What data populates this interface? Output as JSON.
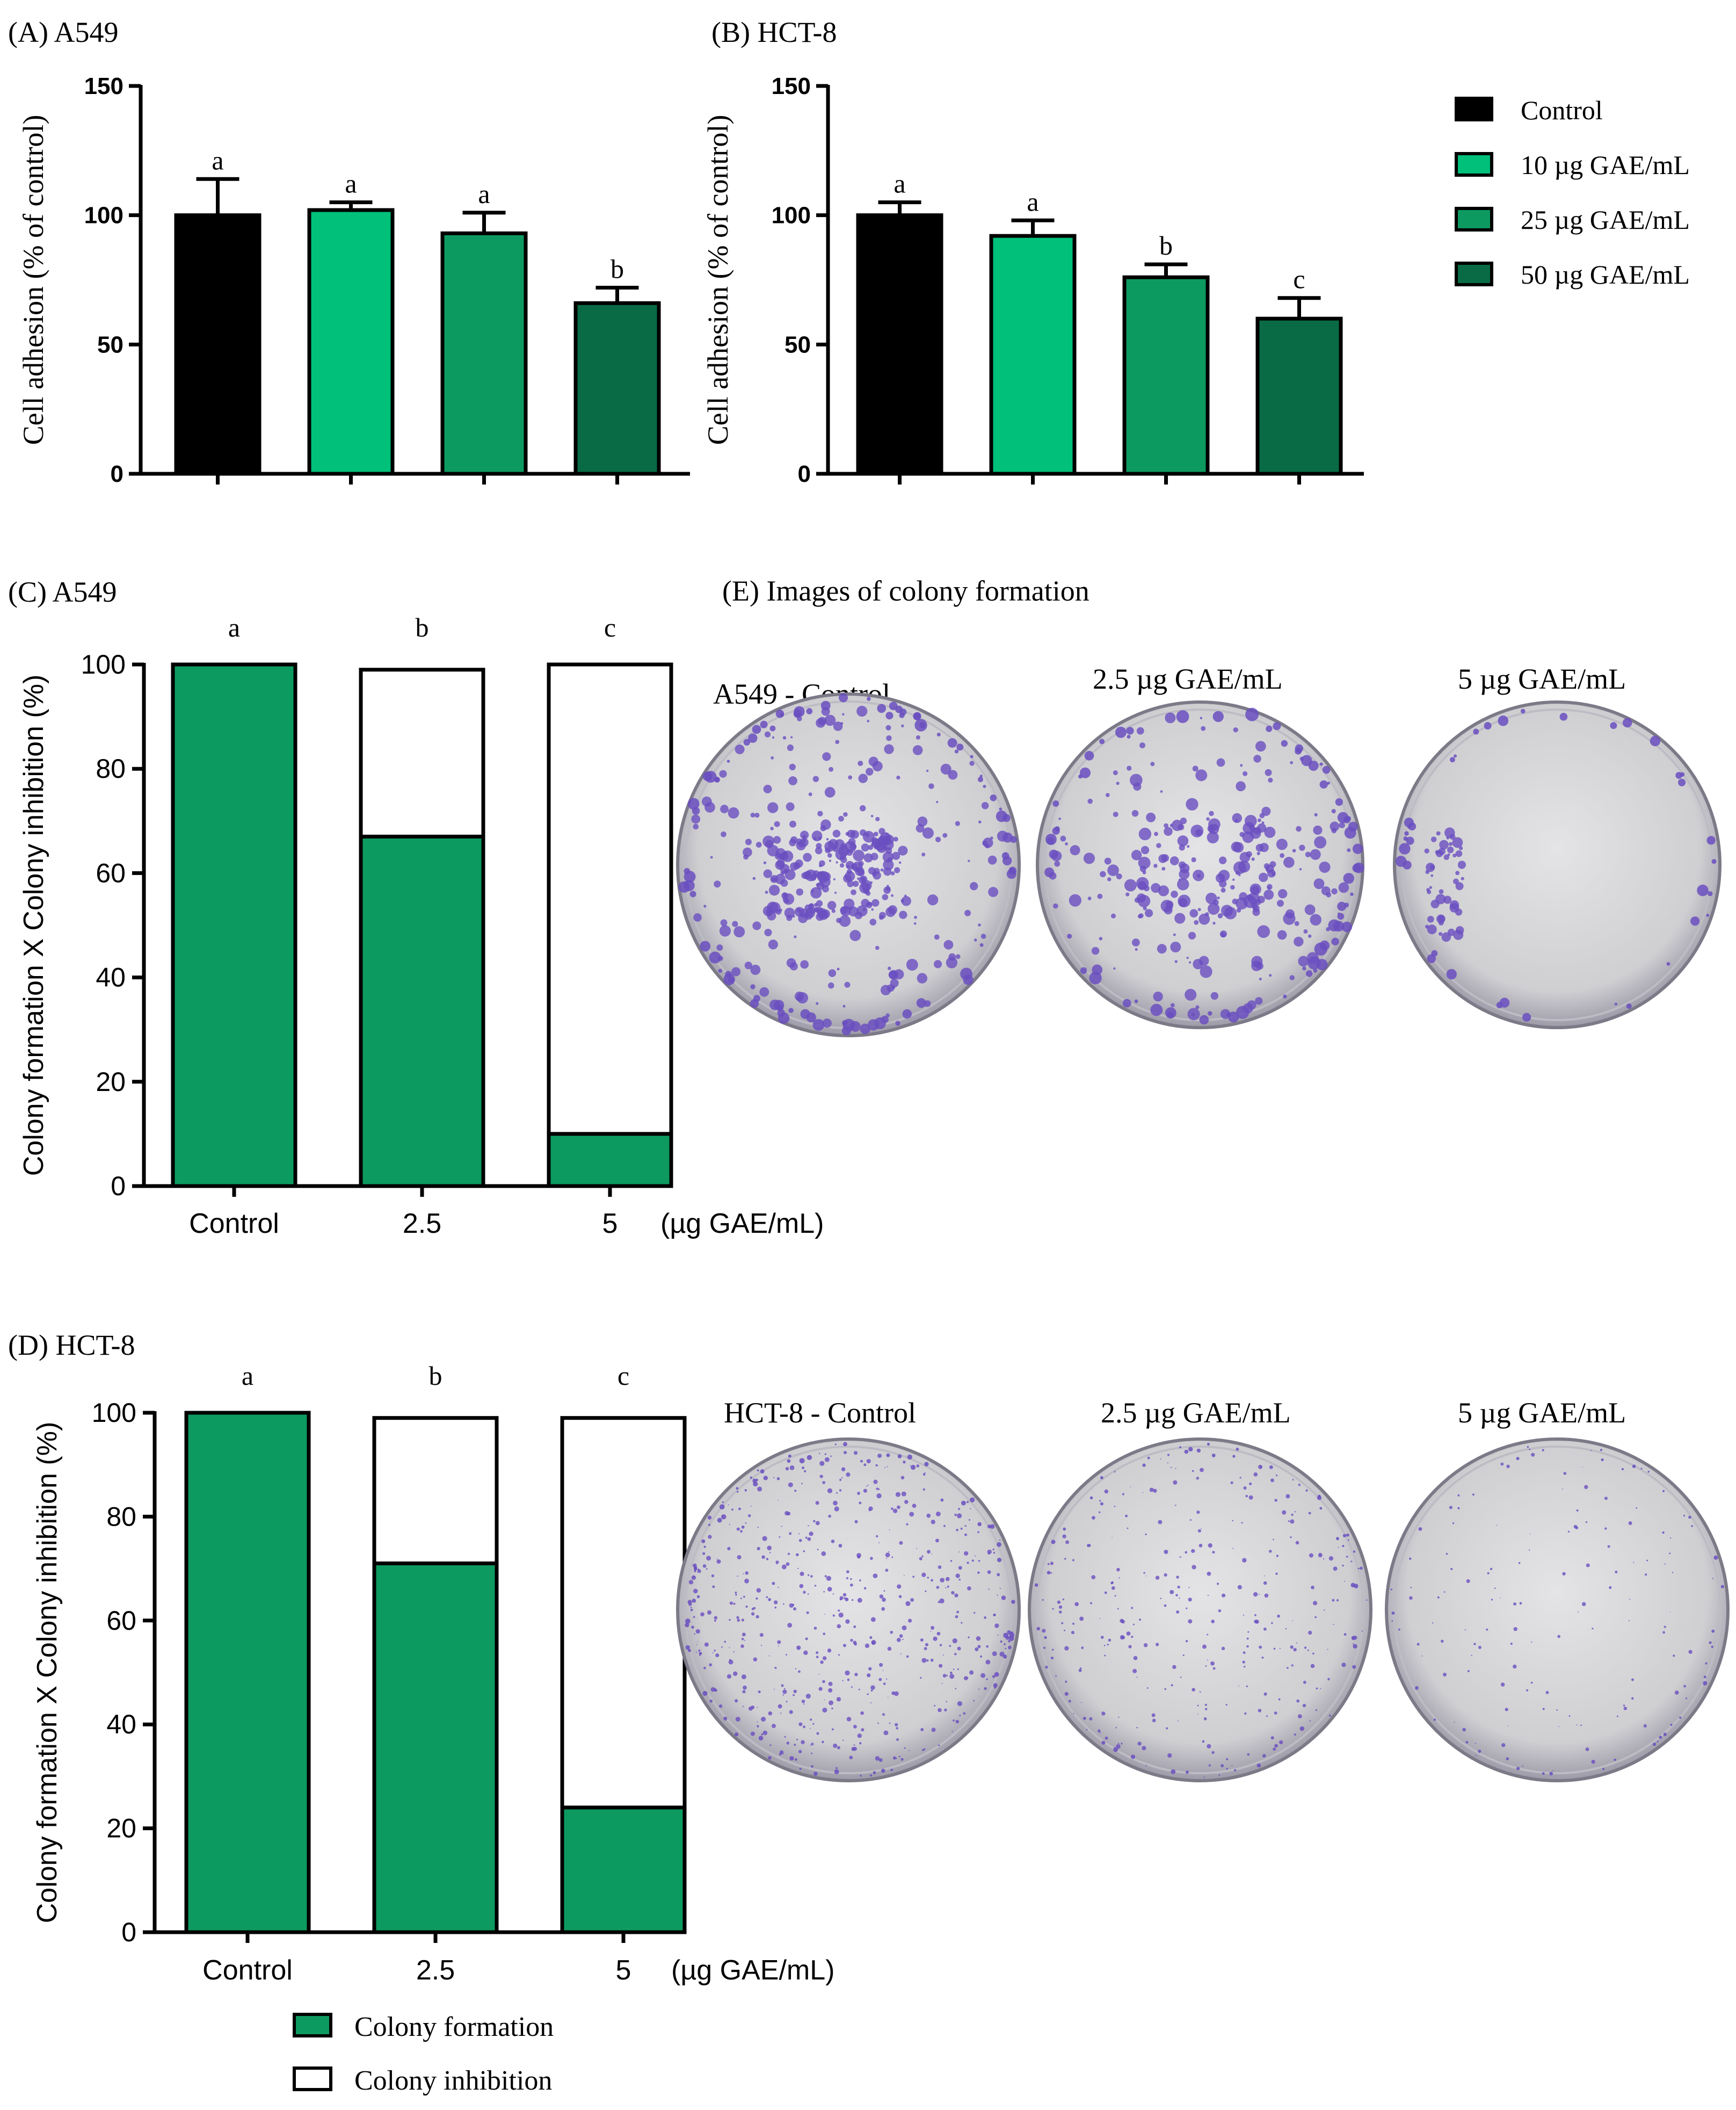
{
  "panels": {
    "A": {
      "title": "(A) A549"
    },
    "B": {
      "title": "(B) HCT-8"
    },
    "C": {
      "title": "(C) A549"
    },
    "D": {
      "title": "(D) HCT-8"
    },
    "E": {
      "title": "(E) Images of colony formation",
      "a549_captions": [
        "A549 - Control",
        "2.5 µg GAE/mL",
        "5 µg GAE/mL"
      ],
      "hct8_captions": [
        "HCT-8 - Control",
        "2.5 µg GAE/mL",
        "5 µg GAE/mL"
      ]
    }
  },
  "colors": {
    "control": "#000000",
    "c10": "#00c07a",
    "c25": "#0d9a60",
    "c50": "#086b46",
    "formation": "#0d9a60",
    "inhibition": "#ffffff",
    "dish_bg": "#d4d4d6",
    "colony": "#6a4fc0"
  },
  "legend_top": {
    "entries": [
      "Control",
      "10 µg GAE/mL",
      "25 µg GAE/mL",
      "50 µg GAE/mL"
    ]
  },
  "legend_bottom": {
    "entries": [
      "Colony formation",
      "Colony inhibition"
    ]
  },
  "chart_data": [
    {
      "id": "A",
      "type": "bar",
      "title": "(A) A549",
      "ylabel": "Cell adhesion  (% of control)",
      "ylim": [
        0,
        150
      ],
      "yticks": [
        0,
        50,
        100,
        150
      ],
      "series": [
        {
          "name": "Control",
          "value": 100,
          "error": 14,
          "letter": "a"
        },
        {
          "name": "10 µg GAE/mL",
          "value": 102,
          "error": 3,
          "letter": "a"
        },
        {
          "name": "25 µg GAE/mL",
          "value": 93,
          "error": 8,
          "letter": "a"
        },
        {
          "name": "50 µg GAE/mL",
          "value": 66,
          "error": 6,
          "letter": "b"
        }
      ]
    },
    {
      "id": "B",
      "type": "bar",
      "title": "(B) HCT-8",
      "ylabel": "Cell adhesion (% of control)",
      "ylim": [
        0,
        150
      ],
      "yticks": [
        0,
        50,
        100,
        150
      ],
      "series": [
        {
          "name": "Control",
          "value": 100,
          "error": 5,
          "letter": "a"
        },
        {
          "name": "10 µg GAE/mL",
          "value": 92,
          "error": 6,
          "letter": "a"
        },
        {
          "name": "25 µg GAE/mL",
          "value": 76,
          "error": 5,
          "letter": "b"
        },
        {
          "name": "50 µg GAE/mL",
          "value": 60,
          "error": 8,
          "letter": "c"
        }
      ]
    },
    {
      "id": "C",
      "type": "bar",
      "title": "(C) A549",
      "ylabel": "Colony formation X Colony inhibition (%)",
      "ylim": [
        0,
        100
      ],
      "yticks": [
        0,
        20,
        40,
        60,
        80,
        100
      ],
      "categories": [
        "Control",
        "2.5",
        "5"
      ],
      "x_unit": "(µg GAE/mL)",
      "letters": [
        "a",
        "b",
        "c"
      ],
      "series": [
        {
          "name": "Colony formation",
          "values": [
            100,
            67,
            10
          ]
        },
        {
          "name": "Colony inhibition",
          "values": [
            0,
            32,
            90
          ]
        }
      ]
    },
    {
      "id": "D",
      "type": "bar",
      "title": "(D) HCT-8",
      "ylabel": "Colony formation X Colony inhibition (%)",
      "ylim": [
        0,
        100
      ],
      "yticks": [
        0,
        20,
        40,
        60,
        80,
        100
      ],
      "categories": [
        "Control",
        "2.5",
        "5"
      ],
      "x_unit": "(µg GAE/mL)",
      "letters": [
        "a",
        "b",
        "c"
      ],
      "series": [
        {
          "name": "Colony formation",
          "values": [
            100,
            71,
            24
          ]
        },
        {
          "name": "Colony inhibition",
          "values": [
            0,
            28,
            75
          ]
        }
      ]
    }
  ],
  "dishes": [
    {
      "density": 0.62,
      "cluster": "center-left",
      "colony_size": 1.3
    },
    {
      "density": 0.42,
      "cluster": "center",
      "colony_size": 1.4
    },
    {
      "density": 0.08,
      "cluster": "left-edge",
      "colony_size": 1.2
    },
    {
      "density": 0.85,
      "cluster": "diffuse",
      "colony_size": 0.55
    },
    {
      "density": 0.45,
      "cluster": "diffuse",
      "colony_size": 0.5
    },
    {
      "density": 0.18,
      "cluster": "diffuse",
      "colony_size": 0.45
    }
  ]
}
